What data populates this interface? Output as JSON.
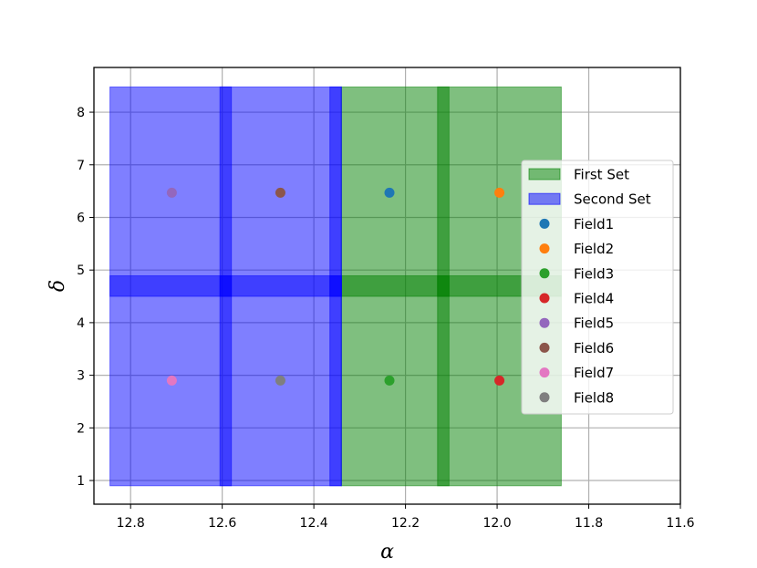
{
  "chart_data": {
    "type": "scatter",
    "xlabel": "α",
    "ylabel": "δ",
    "xlim": [
      12.88,
      11.6
    ],
    "ylim": [
      0.55,
      8.85
    ],
    "x_inverted": true,
    "grid": true,
    "legend_placement": "center-right",
    "xticks": [
      "12.8",
      "12.6",
      "12.4",
      "12.2",
      "12.0",
      "11.8",
      "11.6"
    ],
    "xtick_values": [
      12.8,
      12.6,
      12.4,
      12.2,
      12.0,
      11.8,
      11.6
    ],
    "yticks": [
      "1",
      "2",
      "3",
      "4",
      "5",
      "6",
      "7",
      "8"
    ],
    "ytick_values": [
      1,
      2,
      3,
      4,
      5,
      6,
      7,
      8
    ],
    "regions": [
      {
        "name": "First Set",
        "color": "#008000",
        "rects": [
          {
            "x0": 12.34,
            "x1": 12.105,
            "y0": 0.9,
            "y1": 4.89
          },
          {
            "x0": 12.34,
            "x1": 12.105,
            "y0": 4.5,
            "y1": 8.48
          },
          {
            "x0": 12.13,
            "x1": 11.86,
            "y0": 0.9,
            "y1": 4.89
          },
          {
            "x0": 12.13,
            "x1": 11.86,
            "y0": 4.5,
            "y1": 8.48
          }
        ]
      },
      {
        "name": "Second Set",
        "color": "#0000ff",
        "rects": [
          {
            "x0": 12.845,
            "x1": 12.58,
            "y0": 0.9,
            "y1": 4.89
          },
          {
            "x0": 12.845,
            "x1": 12.58,
            "y0": 4.5,
            "y1": 8.48
          },
          {
            "x0": 12.605,
            "x1": 12.34,
            "y0": 0.9,
            "y1": 4.89
          },
          {
            "x0": 12.605,
            "x1": 12.34,
            "y0": 4.5,
            "y1": 8.48
          },
          {
            "x0": 12.365,
            "x1": 12.34,
            "y0": 0.9,
            "y1": 4.89
          },
          {
            "x0": 12.365,
            "x1": 12.34,
            "y0": 4.5,
            "y1": 8.48
          }
        ]
      }
    ],
    "series": [
      {
        "name": "Field1",
        "color": "#1f77b4",
        "x": 12.235,
        "y": 6.47
      },
      {
        "name": "Field2",
        "color": "#ff7f0e",
        "x": 11.995,
        "y": 6.47
      },
      {
        "name": "Field3",
        "color": "#2ca02c",
        "x": 12.235,
        "y": 2.9
      },
      {
        "name": "Field4",
        "color": "#d62728",
        "x": 11.995,
        "y": 2.9
      },
      {
        "name": "Field5",
        "color": "#9467bd",
        "x": 12.71,
        "y": 6.47
      },
      {
        "name": "Field6",
        "color": "#8c564b",
        "x": 12.473,
        "y": 6.47
      },
      {
        "name": "Field7",
        "color": "#e377c2",
        "x": 12.71,
        "y": 2.9
      },
      {
        "name": "Field8",
        "color": "#7f7f7f",
        "x": 12.473,
        "y": 2.9
      }
    ],
    "legend": [
      "First Set",
      "Second Set",
      "Field1",
      "Field2",
      "Field3",
      "Field4",
      "Field5",
      "Field6",
      "Field7",
      "Field8"
    ]
  }
}
